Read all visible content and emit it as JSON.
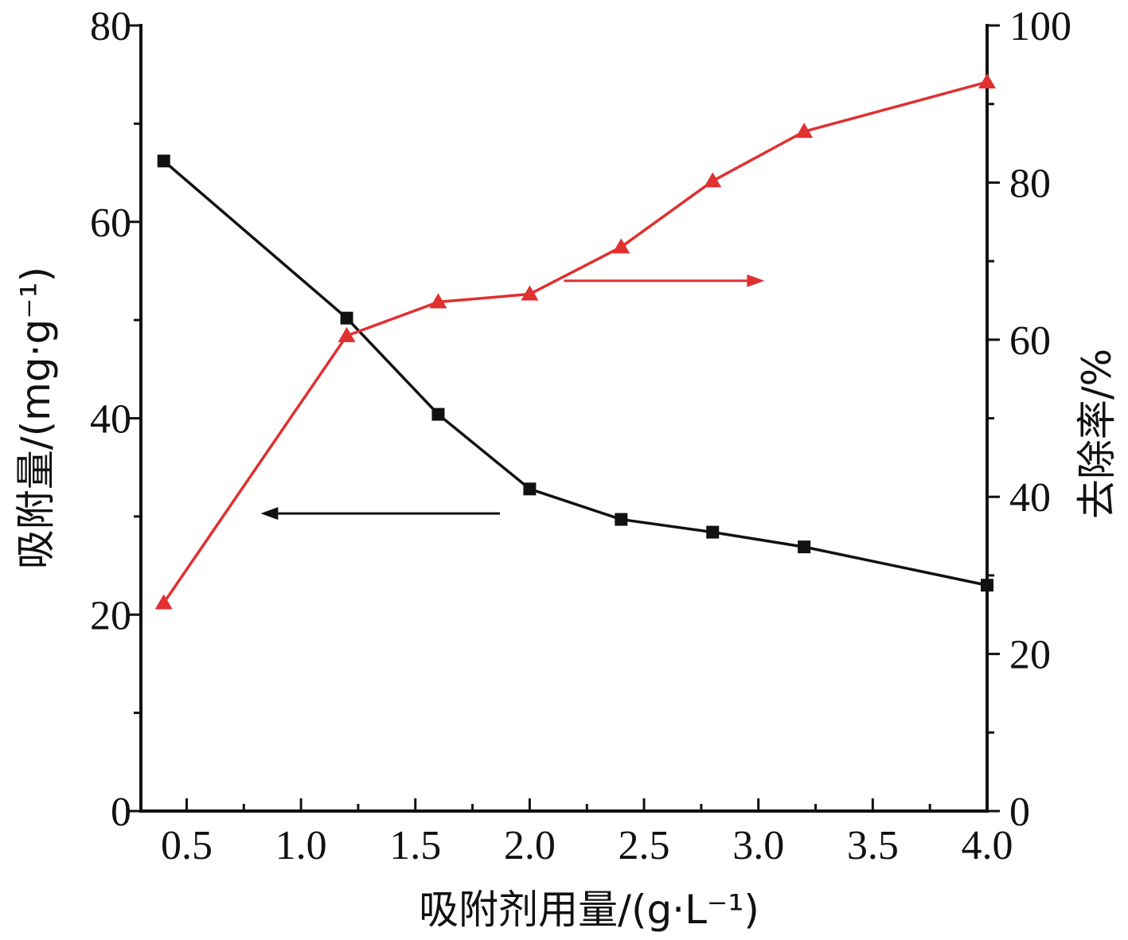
{
  "chart_data": {
    "type": "line",
    "xlabel": "吸附剂用量/(g·L⁻¹)",
    "ylabel_left": "吸附量/(mg·g⁻¹)",
    "ylabel_right": "去除率/%",
    "x_ticks": [
      "0.5",
      "1.0",
      "1.5",
      "2.0",
      "2.5",
      "3.0",
      "3.5",
      "4.0"
    ],
    "x_tick_values": [
      0.5,
      1.0,
      1.5,
      2.0,
      2.5,
      3.0,
      3.5,
      4.0
    ],
    "xlim": [
      0.3,
      4.0
    ],
    "y_left_ticks": [
      "0",
      "20",
      "40",
      "60",
      "80"
    ],
    "y_left_tick_values": [
      0,
      20,
      40,
      60,
      80
    ],
    "ylim_left": [
      0,
      80
    ],
    "y_right_ticks": [
      "0",
      "20",
      "40",
      "60",
      "80",
      "100"
    ],
    "y_right_tick_values": [
      0,
      20,
      40,
      60,
      80,
      100
    ],
    "ylim_right": [
      0,
      100
    ],
    "grid": false,
    "series": [
      {
        "axis": "left",
        "color": "#111111",
        "marker": "square",
        "x": [
          0.4,
          1.2,
          1.6,
          2.0,
          2.4,
          2.8,
          3.2,
          4.0
        ],
        "y": [
          66.2,
          50.2,
          40.4,
          32.8,
          29.7,
          28.4,
          26.9,
          23.0
        ]
      },
      {
        "axis": "right",
        "color": "#e03030",
        "marker": "triangle",
        "x": [
          0.4,
          1.2,
          1.6,
          2.0,
          2.4,
          2.8,
          3.2,
          4.0
        ],
        "y": [
          26.5,
          60.5,
          64.8,
          65.8,
          71.8,
          80.2,
          86.5,
          92.8
        ]
      }
    ],
    "annotations": [
      {
        "type": "arrow",
        "direction": "left",
        "color": "#111111",
        "refers_to_axis": "left"
      },
      {
        "type": "arrow",
        "direction": "right",
        "color": "#e03030",
        "refers_to_axis": "right"
      }
    ]
  }
}
